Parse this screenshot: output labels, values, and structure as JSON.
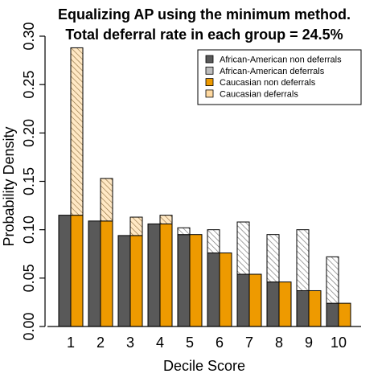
{
  "colors": {
    "aa_non": "#595959",
    "aa_def": "#bdbdbd",
    "cau_non": "#ee9a00",
    "cau_def": "#ffd9a0",
    "axis": "#000000"
  },
  "chart_data": {
    "type": "bar",
    "title": "Equalizing AP using the minimum method.",
    "subtitle": "Total deferral rate in each group = 24.5%",
    "xlabel": "Decile Score",
    "ylabel": "Probability Density",
    "ylim": [
      0,
      0.3
    ],
    "yticks": [
      "0.00",
      "0.05",
      "0.10",
      "0.15",
      "0.20",
      "0.25",
      "0.30"
    ],
    "categories": [
      "1",
      "2",
      "3",
      "4",
      "5",
      "6",
      "7",
      "8",
      "9",
      "10"
    ],
    "stacked": true,
    "grid": false,
    "legend_position": "top-right",
    "series": [
      {
        "name": "African-American non deferrals",
        "group": "African-American",
        "kind": "non",
        "values": [
          0.115,
          0.109,
          0.094,
          0.106,
          0.095,
          0.076,
          0.054,
          0.046,
          0.037,
          0.024
        ]
      },
      {
        "name": "African-American deferrals",
        "group": "African-American",
        "kind": "def",
        "values": [
          0.0,
          0.0,
          0.0,
          0.0,
          0.007,
          0.024,
          0.054,
          0.049,
          0.063,
          0.048
        ]
      },
      {
        "name": "Caucasian non deferrals",
        "group": "Caucasian",
        "kind": "non",
        "values": [
          0.115,
          0.109,
          0.094,
          0.106,
          0.095,
          0.076,
          0.054,
          0.046,
          0.037,
          0.024
        ]
      },
      {
        "name": "Caucasian deferrals",
        "group": "Caucasian",
        "kind": "def",
        "values": [
          0.173,
          0.044,
          0.019,
          0.009,
          0.0,
          0.0,
          0.0,
          0.0,
          0.0,
          0.0
        ]
      }
    ]
  }
}
